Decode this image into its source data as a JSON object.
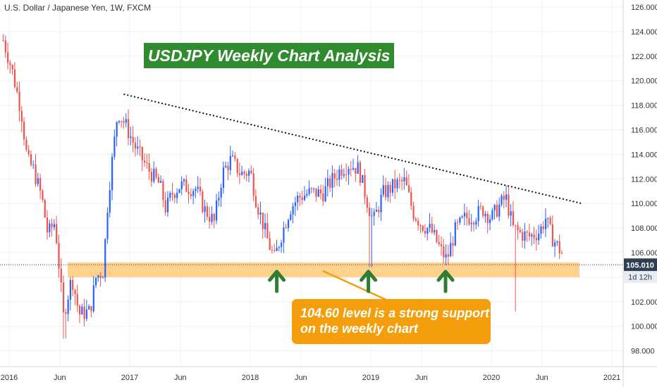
{
  "header": {
    "symbol_title": "U.S. Dollar / Japanese Yen, 1W, FXCM"
  },
  "chart_data": {
    "type": "candlestick",
    "title": "USDJPY Weekly Chart Analysis",
    "symbol": "U.S. Dollar / Japanese Yen, 1W, FXCM",
    "ylim": [
      97,
      126.5
    ],
    "y_ticks": [
      "98.000",
      "100.000",
      "102.000",
      "104.000",
      "106.000",
      "108.000",
      "110.000",
      "112.000",
      "114.000",
      "116.000",
      "118.000",
      "120.000",
      "122.000",
      "124.000",
      "126.000"
    ],
    "x_ticks": [
      "2016",
      "Jun",
      "2017",
      "Jun",
      "2018",
      "Jun",
      "2019",
      "Jun",
      "2020",
      "Jun",
      "2021"
    ],
    "x_tick_years": [
      2016.0,
      2016.42,
      2017.0,
      2017.42,
      2018.0,
      2018.42,
      2019.0,
      2019.42,
      2020.0,
      2020.42,
      2021.0
    ],
    "grid": true,
    "price_path": [
      [
        2015.95,
        123.3
      ],
      [
        2016.02,
        121.0
      ],
      [
        2016.1,
        117.5
      ],
      [
        2016.15,
        113.5
      ],
      [
        2016.2,
        112.8
      ],
      [
        2016.27,
        110.5
      ],
      [
        2016.32,
        107.5
      ],
      [
        2016.38,
        108.5
      ],
      [
        2016.45,
        100.8
      ],
      [
        2016.52,
        104.0
      ],
      [
        2016.58,
        101.0
      ],
      [
        2016.67,
        101.2
      ],
      [
        2016.72,
        104.0
      ],
      [
        2016.78,
        104.5
      ],
      [
        2016.82,
        110.5
      ],
      [
        2016.9,
        117.5
      ],
      [
        2016.96,
        116.5
      ],
      [
        2017.05,
        114.5
      ],
      [
        2017.15,
        112.8
      ],
      [
        2017.25,
        111.5
      ],
      [
        2017.3,
        109.5
      ],
      [
        2017.35,
        110.8
      ],
      [
        2017.42,
        111.5
      ],
      [
        2017.48,
        111.3
      ],
      [
        2017.55,
        111.2
      ],
      [
        2017.62,
        109.5
      ],
      [
        2017.7,
        108.5
      ],
      [
        2017.77,
        112.5
      ],
      [
        2017.84,
        113.6
      ],
      [
        2017.92,
        112.4
      ],
      [
        2018.0,
        112.6
      ],
      [
        2018.05,
        110.2
      ],
      [
        2018.15,
        106.8
      ],
      [
        2018.2,
        105.5
      ],
      [
        2018.25,
        107.2
      ],
      [
        2018.33,
        109.6
      ],
      [
        2018.4,
        110.5
      ],
      [
        2018.5,
        110.9
      ],
      [
        2018.6,
        110.8
      ],
      [
        2018.65,
        111.5
      ],
      [
        2018.75,
        112.8
      ],
      [
        2018.82,
        113.2
      ],
      [
        2018.9,
        112.8
      ],
      [
        2018.96,
        110.5
      ],
      [
        2019.02,
        108.5
      ],
      [
        2019.1,
        110.8
      ],
      [
        2019.2,
        111.5
      ],
      [
        2019.28,
        111.8
      ],
      [
        2019.35,
        109.3
      ],
      [
        2019.42,
        108.3
      ],
      [
        2019.5,
        107.8
      ],
      [
        2019.58,
        106.2
      ],
      [
        2019.63,
        105.4
      ],
      [
        2019.7,
        107.8
      ],
      [
        2019.78,
        108.8
      ],
      [
        2019.86,
        109.0
      ],
      [
        2019.93,
        109.5
      ],
      [
        2020.0,
        108.8
      ],
      [
        2020.05,
        109.6
      ],
      [
        2020.12,
        110.5
      ],
      [
        2020.18,
        108.0
      ],
      [
        2020.25,
        107.5
      ],
      [
        2020.32,
        107.3
      ],
      [
        2020.4,
        107.7
      ],
      [
        2020.45,
        108.8
      ],
      [
        2020.5,
        107.3
      ],
      [
        2020.55,
        106.5
      ],
      [
        2020.6,
        105.7
      ]
    ],
    "annotations": {
      "support_level": 104.6,
      "support_zone": [
        104.0,
        105.2
      ],
      "current_price": "105.010",
      "countdown": "1d 12h",
      "trendline": {
        "from": [
          2016.95,
          118.9
        ],
        "to": [
          2020.75,
          110.0
        ]
      },
      "support_arrows_x": [
        2018.22,
        2018.98,
        2019.62
      ],
      "callout": [
        "104.60 level is a strong support",
        "on the weekly chart"
      ]
    },
    "colors": {
      "up": "#2962ff",
      "down": "#ef5350",
      "support_zone": "#ffcc80",
      "price_tag": "#2f3e53",
      "arrow": "#2e7d32",
      "callout": "#f59e0b",
      "title_bg": "#2e8b2e"
    }
  }
}
